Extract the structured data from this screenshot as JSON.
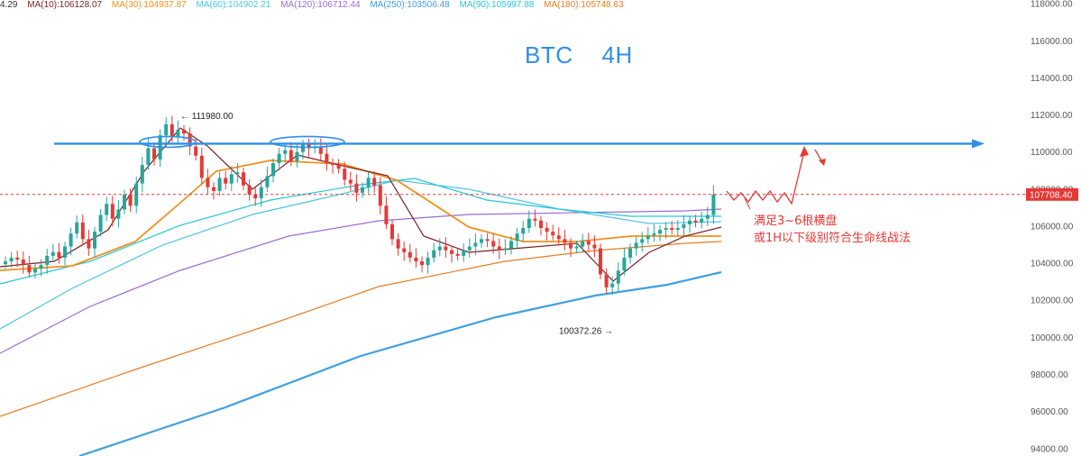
{
  "ma_legend": [
    {
      "text": "4.29",
      "color": "#333333"
    },
    {
      "text": "MA(10):106128.07",
      "color": "#7b1f1f"
    },
    {
      "text": "MA(30):104937.87",
      "color": "#f0901e"
    },
    {
      "text": "MA(60):104902.21",
      "color": "#4fc3e8"
    },
    {
      "text": "MA(120):106712.44",
      "color": "#9b6bd6"
    },
    {
      "text": "MA(250):103506.48",
      "color": "#3fa0e0"
    },
    {
      "text": "MA(90):105997.88",
      "color": "#26c6da"
    },
    {
      "text": "MA(180):105748.63",
      "color": "#e67e22"
    }
  ],
  "title": {
    "symbol": "BTC",
    "timeframe": "4H"
  },
  "note": {
    "line1": "满足3~6根横盘",
    "line2": "或1H以下级别符合生命线战法"
  },
  "colors": {
    "up": "#26a69a",
    "down": "#e53935",
    "accent": "#2f8fe8",
    "current_price": "#e53935"
  },
  "chart_data": {
    "type": "candlestick",
    "y_axis": {
      "min": 93600,
      "max": 118200,
      "ticks": [
        "94000.00",
        "96000.00",
        "98000.00",
        "100000.00",
        "102000.00",
        "104000.00",
        "106000.00",
        "108000.00",
        "110000.00",
        "112000.00",
        "114000.00",
        "116000.00",
        "118000.00"
      ],
      "tick_values": [
        94000,
        96000,
        98000,
        100000,
        102000,
        104000,
        106000,
        108000,
        110000,
        112000,
        114000,
        116000,
        118000
      ]
    },
    "current_price": {
      "value": 107708.4,
      "label": "107708.40"
    },
    "high_marker": {
      "value": 111980.0,
      "label": "111980.00"
    },
    "low_marker": {
      "value": 100372.26,
      "label": "100372.26"
    },
    "resistance_level": 110450,
    "candle_closes": [
      104100,
      104300,
      104200,
      103900,
      103500,
      103700,
      103900,
      104400,
      104600,
      104300,
      104900,
      105600,
      106200,
      105300,
      104800,
      105700,
      106600,
      107200,
      106400,
      106900,
      107700,
      107100,
      108300,
      109300,
      110200,
      109600,
      110900,
      111500,
      110800,
      111200,
      111000,
      110300,
      109800,
      108600,
      108100,
      107900,
      108600,
      108300,
      108800,
      108900,
      108200,
      107700,
      107500,
      108100,
      108700,
      109400,
      109900,
      110100,
      109500,
      110000,
      110400,
      110200,
      110300,
      109900,
      109400,
      109300,
      109100,
      108500,
      108300,
      107800,
      108100,
      108600,
      108200,
      107100,
      106100,
      105300,
      104800,
      104600,
      104300,
      104100,
      103900,
      104300,
      104700,
      104900,
      104700,
      104500,
      104400,
      104700,
      104900,
      105100,
      105300,
      105200,
      104900,
      104700,
      104800,
      105200,
      105600,
      105900,
      106400,
      106300,
      105900,
      105700,
      105500,
      105300,
      105100,
      104800,
      104900,
      105200,
      105000,
      104800,
      103400,
      102700,
      102900,
      103600,
      104300,
      104800,
      105100,
      105300,
      105500,
      105600,
      105800,
      105900,
      105800,
      105900,
      106100,
      106300,
      106200,
      106400,
      106600,
      107708
    ]
  }
}
